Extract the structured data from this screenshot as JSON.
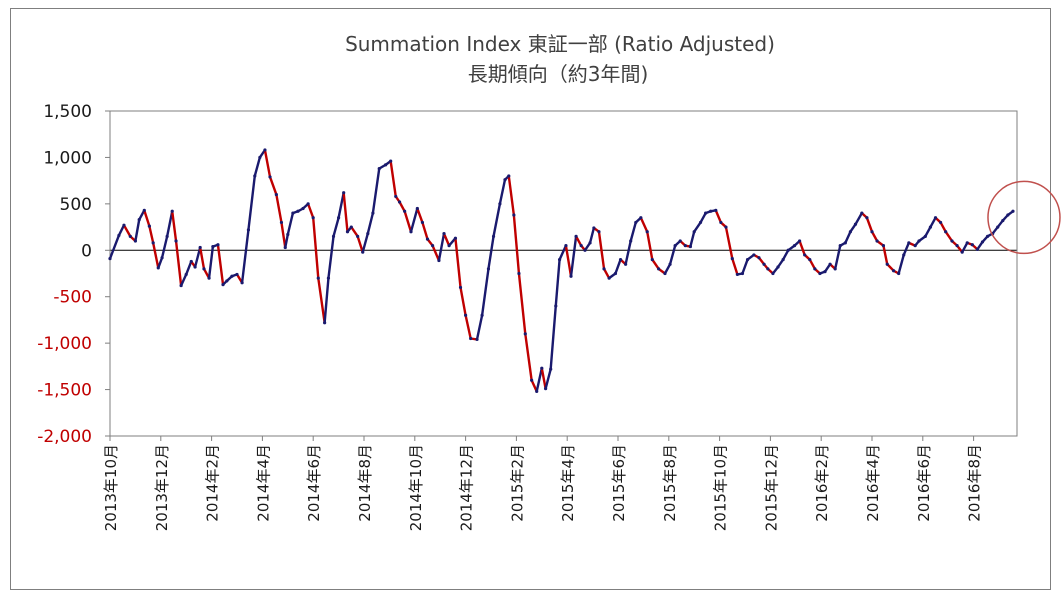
{
  "chart_data": {
    "type": "line",
    "title": "Summation Index 東証一部 (Ratio Adjusted)",
    "subtitle": "長期傾向（約3年間)",
    "ylim": [
      -2000,
      1500
    ],
    "y_ticks": [
      "1,500",
      "1,000",
      "500",
      "0",
      "-500",
      "-1,000",
      "-1,500",
      "-2,000"
    ],
    "y_tick_values": [
      1500,
      1000,
      500,
      0,
      -500,
      -1000,
      -1500,
      -2000
    ],
    "x_tick_labels": [
      "2013年10月",
      "2013年12月",
      "2014年2月",
      "2014年4月",
      "2014年6月",
      "2014年8月",
      "2014年10月",
      "2014年12月",
      "2015年2月",
      "2015年4月",
      "2015年6月",
      "2015年8月",
      "2015年10月",
      "2015年12月",
      "2016年2月",
      "2016年4月",
      "2016年6月",
      "2016年8月"
    ],
    "grid": false,
    "series": [
      {
        "x": [
          0,
          0.35,
          0.55,
          0.8,
          1.0,
          1.15,
          1.35,
          1.55,
          1.7,
          1.9,
          2.05,
          2.25,
          2.45,
          2.6,
          2.8,
          3.0,
          3.2,
          3.35,
          3.55,
          3.7,
          3.9,
          4.05,
          4.25,
          4.45,
          4.6,
          4.8,
          5.0,
          5.2,
          5.45,
          5.7,
          5.9,
          6.1,
          6.3,
          6.55,
          6.75,
          6.9,
          7.0,
          7.2,
          7.4,
          7.6,
          7.8,
          8.0,
          8.2,
          8.45,
          8.6,
          8.8,
          9.0,
          9.2,
          9.35,
          9.5,
          9.75,
          9.95,
          10.15,
          10.35,
          10.6,
          10.85,
          11.05,
          11.25,
          11.4,
          11.6,
          11.85,
          12.1,
          12.3,
          12.5,
          12.7,
          12.95,
          13.15,
          13.35,
          13.6,
          13.8,
          14.0,
          14.2,
          14.45,
          14.65,
          14.9,
          15.1,
          15.35,
          15.55,
          15.7,
          15.9,
          16.1,
          16.35,
          16.6,
          16.8,
          17.0,
          17.15,
          17.35,
          17.55,
          17.7,
          17.95,
          18.15,
          18.35,
          18.55,
          18.7,
          18.9,
          19.05
        ],
        "values": [
          -90,
          160,
          270,
          150,
          100,
          330,
          430,
          260,
          80,
          -190,
          -80,
          150,
          420,
          100,
          -380,
          -260,
          -120,
          -180,
          30,
          -200,
          -300,
          40,
          60,
          -370,
          -330,
          -280,
          -260,
          -350,
          220,
          800,
          1000,
          1080,
          790,
          600,
          300,
          30,
          170,
          400,
          420,
          450,
          500,
          350,
          -300,
          -780,
          -300,
          150,
          350,
          620,
          200,
          250,
          150,
          -20,
          180,
          400,
          880,
          920,
          960,
          580,
          520,
          420,
          200,
          450,
          300,
          120,
          50,
          -110,
          180,
          50,
          130,
          -400,
          -700,
          -950,
          -960,
          -700,
          -200,
          150,
          500,
          760,
          800,
          380,
          -250,
          -900,
          -1400,
          -1520,
          -1270,
          -1490,
          -1280,
          -600,
          -100,
          50,
          -280,
          150,
          50,
          0,
          80,
          240
        ],
        "x_tick_index_note": "",
        "color_up": "#1a1a6e",
        "color_down": "#c00000"
      }
    ],
    "extra_points": {
      "x": [
        19.25,
        19.45,
        19.65,
        19.9,
        20.1,
        20.3,
        20.5,
        20.7,
        20.9,
        21.15,
        21.35,
        21.6,
        21.85,
        22.05,
        22.25,
        22.45,
        22.65,
        22.85,
        23.0,
        23.25,
        23.45,
        23.65,
        23.85,
        24.05,
        24.25,
        24.5,
        24.7,
        24.9,
        25.1,
        25.35,
        25.55,
        25.75,
        25.9,
        26.1,
        26.3,
        26.5,
        26.7,
        26.95,
        27.15,
        27.35,
        27.55,
        27.75,
        27.95,
        28.15,
        28.35,
        28.55,
        28.75,
        28.95,
        29.15,
        29.35,
        29.6,
        29.8,
        30.0,
        30.2,
        30.45,
        30.6,
        30.85,
        31.05,
        31.25,
        31.45,
        31.7,
        31.85,
        32.1,
        32.3,
        32.5,
        32.7,
        32.9,
        33.15,
        33.35,
        33.55,
        33.75,
        33.95,
        34.15,
        34.35,
        34.55,
        34.75,
        34.95,
        35.15,
        35.35,
        35.55
      ],
      "values": [
        200,
        -200,
        -300,
        -250,
        -100,
        -150,
        100,
        300,
        350,
        200,
        -100,
        -200,
        -250,
        -150,
        50,
        100,
        50,
        40,
        200,
        300,
        400,
        420,
        430,
        300,
        250,
        -90,
        -260,
        -250,
        -100,
        -50,
        -80,
        -150,
        -200,
        -250,
        -180,
        -100,
        0,
        50,
        100,
        -50,
        -100,
        -200,
        -250,
        -230,
        -150,
        -200,
        50,
        80,
        200,
        280,
        400,
        350,
        200,
        100,
        50,
        -150,
        -220,
        -250,
        -50,
        80,
        50,
        100,
        150,
        250,
        350,
        300,
        200,
        100,
        50,
        -20,
        80,
        60,
        10,
        90,
        150,
        180,
        250,
        320,
        380,
        420
      ]
    },
    "annotations": [
      {
        "type": "circle",
        "color": "#c0504d",
        "x": 35.55,
        "y": 300
      }
    ]
  }
}
